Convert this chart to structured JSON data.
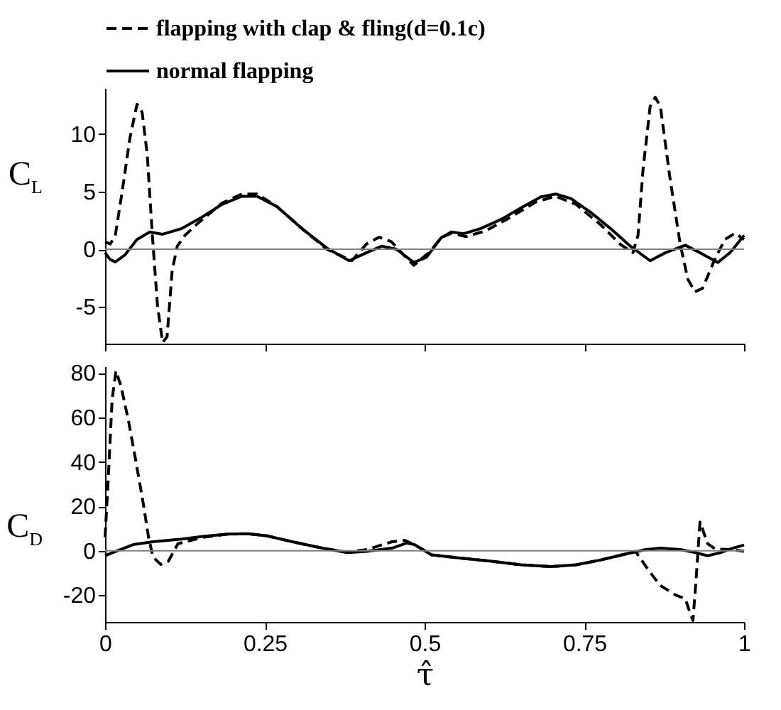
{
  "chart_data": [
    {
      "type": "line",
      "ylabel": "C$_{L}$",
      "xlim": [
        0,
        1
      ],
      "xticks": [
        0,
        0.25,
        0.5,
        0.75,
        1
      ],
      "ylim": [
        -8.2,
        14
      ],
      "yticks": [
        -5,
        0,
        5,
        10
      ],
      "tick_labels": "y",
      "grid": false,
      "legend": "top",
      "marker": "none",
      "ref_lines": [
        {
          "axis": "y",
          "value": 0,
          "color": "#808080"
        }
      ],
      "series": [
        {
          "name": "flapping with clap & fling(d=0.1c)",
          "color": "#000000",
          "line_style": "dashed",
          "x": [
            0,
            0.008,
            0.016,
            0.027,
            0.039,
            0.05,
            0.058,
            0.066,
            0.074,
            0.082,
            0.09,
            0.097,
            0.105,
            0.113,
            0.125,
            0.144,
            0.183,
            0.214,
            0.238,
            0.269,
            0.308,
            0.347,
            0.386,
            0.409,
            0.429,
            0.448,
            0.464,
            0.483,
            0.507,
            0.526,
            0.542,
            0.565,
            0.596,
            0.635,
            0.674,
            0.705,
            0.737,
            0.776,
            0.807,
            0.826,
            0.834,
            0.842,
            0.853,
            0.861,
            0.869,
            0.884,
            0.9,
            0.912,
            0.923,
            0.935,
            0.954,
            0.97,
            0.986,
            1
          ],
          "values": [
            0.65,
            0.45,
            1.2,
            5.1,
            9.7,
            12.6,
            11.9,
            8.2,
            1.2,
            -4.9,
            -8.1,
            -7.6,
            -1.85,
            0.27,
            1.2,
            2.2,
            4.0,
            4.8,
            4.8,
            3.7,
            1.8,
            0,
            -1.0,
            0.45,
            1.05,
            0.65,
            -0.3,
            -1.4,
            -0.3,
            1.0,
            1.4,
            1.1,
            1.6,
            2.8,
            4.1,
            4.6,
            3.9,
            2.1,
            0.4,
            -0.3,
            1.2,
            7.0,
            12.4,
            13.2,
            12.4,
            6.2,
            0.45,
            -2.6,
            -3.7,
            -3.4,
            -0.9,
            0.85,
            1.4,
            0.85
          ]
        },
        {
          "name": "normal flapping",
          "color": "#000000",
          "line_style": "solid",
          "x": [
            0,
            0.008,
            0.016,
            0.031,
            0.05,
            0.07,
            0.09,
            0.12,
            0.152,
            0.183,
            0.214,
            0.238,
            0.269,
            0.308,
            0.347,
            0.382,
            0.409,
            0.433,
            0.456,
            0.483,
            0.503,
            0.526,
            0.542,
            0.561,
            0.588,
            0.62,
            0.651,
            0.682,
            0.705,
            0.729,
            0.76,
            0.791,
            0.822,
            0.853,
            0.877,
            0.908,
            0.931,
            0.959,
            0.978,
            1
          ],
          "values": [
            -0.3,
            -0.9,
            -1.1,
            -0.5,
            0.85,
            1.5,
            1.3,
            1.8,
            2.8,
            3.9,
            4.6,
            4.6,
            3.7,
            1.8,
            0.1,
            -1.0,
            -0.3,
            0.27,
            0,
            -1.15,
            -0.7,
            1.0,
            1.5,
            1.35,
            1.8,
            2.6,
            3.6,
            4.55,
            4.8,
            4.4,
            3.2,
            1.8,
            0.27,
            -1.0,
            -0.3,
            0.35,
            -0.3,
            -1.15,
            -0.3,
            1.2
          ]
        }
      ]
    },
    {
      "type": "line",
      "ylabel": "C$_{D}$",
      "xlabel": "τ̂",
      "xlim": [
        0,
        1
      ],
      "xticks": [
        0,
        0.25,
        0.5,
        0.75,
        1
      ],
      "ylim": [
        -32,
        83
      ],
      "yticks": [
        -20,
        0,
        20,
        40,
        60,
        80
      ],
      "grid": false,
      "marker": "none",
      "ref_lines": [
        {
          "axis": "y",
          "value": 0,
          "color": "#808080"
        }
      ],
      "series": [
        {
          "color": "#000000",
          "line_style": "dashed",
          "x": [
            0,
            0.005,
            0.011,
            0.017,
            0.025,
            0.037,
            0.048,
            0.06,
            0.068,
            0.075,
            0.087,
            0.099,
            0.114,
            0.153,
            0.192,
            0.223,
            0.254,
            0.293,
            0.34,
            0.379,
            0.41,
            0.449,
            0.469,
            0.484,
            0.511,
            0.558,
            0.605,
            0.651,
            0.698,
            0.737,
            0.776,
            0.815,
            0.83,
            0.853,
            0.869,
            0.893,
            0.908,
            0.916,
            0.92,
            0.925,
            0.931,
            0.943,
            0.955,
            0.978,
            1
          ],
          "values": [
            6.1,
            32.7,
            68,
            81,
            74,
            58,
            40.6,
            20.9,
            6.1,
            -2.8,
            -6.1,
            -4.7,
            3.2,
            6.1,
            7.5,
            7.7,
            6.7,
            4.1,
            1.2,
            -0.6,
            0.6,
            4.1,
            4.7,
            2.8,
            -1.8,
            -3.3,
            -4.7,
            -6.3,
            -7.1,
            -6.3,
            -4.1,
            -1.4,
            -0.2,
            -9.7,
            -15.6,
            -19.9,
            -21.5,
            -28.4,
            -31.3,
            -12.6,
            13,
            3.2,
            0.8,
            0.6,
            -0.2
          ]
        },
        {
          "color": "#000000",
          "line_style": "solid",
          "x": [
            0,
            0.021,
            0.044,
            0.075,
            0.114,
            0.153,
            0.192,
            0.223,
            0.254,
            0.293,
            0.34,
            0.379,
            0.41,
            0.449,
            0.472,
            0.484,
            0.511,
            0.558,
            0.605,
            0.651,
            0.698,
            0.737,
            0.776,
            0.815,
            0.846,
            0.869,
            0.9,
            0.924,
            0.943,
            0.963,
            0.982,
            1
          ],
          "values": [
            -2.2,
            0.2,
            2.8,
            4.1,
            5.1,
            6.5,
            7.5,
            7.7,
            6.7,
            4.1,
            1.2,
            -0.8,
            -0.2,
            1.2,
            3.5,
            2.8,
            -1.8,
            -3.3,
            -4.7,
            -6.3,
            -7.1,
            -6.3,
            -4.1,
            -1.4,
            0.6,
            1.2,
            0.6,
            -0.8,
            -2.2,
            -0.8,
            1.2,
            2.6
          ]
        }
      ]
    }
  ]
}
